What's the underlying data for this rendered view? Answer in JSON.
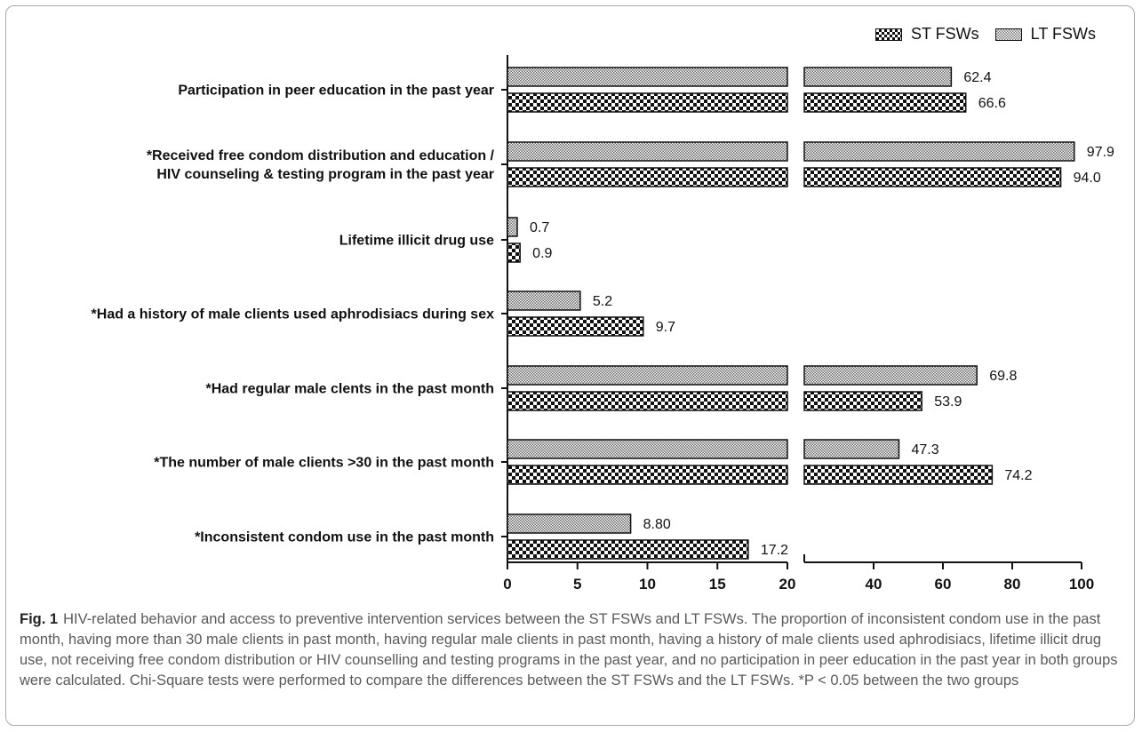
{
  "chart_data": {
    "type": "bar",
    "orientation": "horizontal",
    "axis": "broken x-axis: 0–20 then 20–100",
    "x_ticks": [
      "0",
      "5",
      "10",
      "15",
      "20",
      "40",
      "60",
      "80",
      "100"
    ],
    "x_tick_values": [
      0,
      5,
      10,
      15,
      20,
      40,
      60,
      80,
      100
    ],
    "xlim": [
      0,
      100
    ],
    "legend_position": "top-right",
    "categories": [
      [
        "Participation in peer education in the past year"
      ],
      [
        "*Received free condom distribution and education /",
        "HIV counseling & testing program in the past year"
      ],
      [
        "Lifetime illicit drug use"
      ],
      [
        "*Had a history of male clients used aphrodisiacs during sex"
      ],
      [
        "*Had regular male clents in the past month"
      ],
      [
        "*The number of male clients >30 in the past month"
      ],
      [
        "*Inconsistent condom use in the past month"
      ]
    ],
    "series": [
      {
        "name": "ST FSWs",
        "values": [
          66.6,
          94.0,
          0.9,
          9.7,
          53.9,
          74.2,
          17.2
        ],
        "labels": [
          "66.6",
          "94.0",
          "0.9",
          "9.7",
          "53.9",
          "74.2",
          "17.2"
        ]
      },
      {
        "name": "LT FSWs",
        "values": [
          62.4,
          97.9,
          0.7,
          5.2,
          69.8,
          47.3,
          8.8
        ],
        "labels": [
          "62.4",
          "97.9",
          "0.7",
          "5.2",
          "69.8",
          "47.3",
          "8.80"
        ]
      }
    ]
  },
  "legend": {
    "st_label": "ST FSWs",
    "lt_label": "LT FSWs"
  },
  "caption": {
    "fig_label": "Fig. 1",
    "text": "HIV-related behavior and access to preventive intervention services between the ST FSWs and LT FSWs. The proportion of inconsistent condom use in the past month, having more than 30 male clients in past month, having regular male clients in past month, having a history of male clients used aphrodisiacs, lifetime illicit drug use, not receiving free condom distribution or HIV counselling and testing programs in the past year, and no participation in peer education in the past year in both groups were calculated. Chi-Square tests were performed to compare the differences between the ST FSWs and the LT FSWs. *P < 0.05 between the two groups"
  }
}
